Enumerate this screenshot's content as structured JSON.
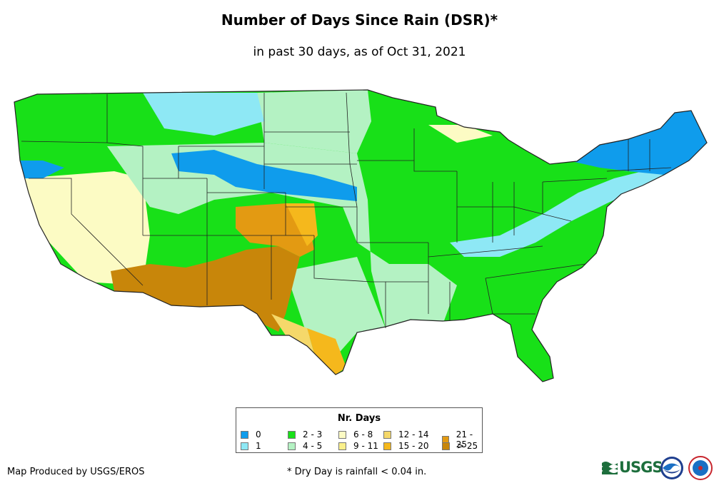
{
  "header": {
    "title": "Number of Days Since Rain (DSR)*",
    "subtitle": "in past 30 days, as of Oct 31, 2021"
  },
  "legend": {
    "title": "Nr. Days",
    "items": [
      {
        "label": "0",
        "color": "#0f9cec"
      },
      {
        "label": "1",
        "color": "#8ee8f5"
      },
      {
        "label": "2 - 3",
        "color": "#18e018"
      },
      {
        "label": "4 - 5",
        "color": "#b4f2c3"
      },
      {
        "label": "6 - 8",
        "color": "#fcfbc4"
      },
      {
        "label": "9 - 11",
        "color": "#faf08c"
      },
      {
        "label": "12 - 14",
        "color": "#f5d86a"
      },
      {
        "label": "15 - 20",
        "color": "#f5b81c"
      },
      {
        "label": "21 - 25",
        "color": "#e39a12"
      },
      {
        "label": "> 25",
        "color": "#c8860a"
      }
    ]
  },
  "footer": {
    "credit": "Map Produced by USGS/EROS",
    "note": "* Dry Day is rainfall < 0.04 in.",
    "usgs_logo_text": "USGS",
    "usgs_logo_icon": "usgs-wave-icon",
    "noaa_logo_icon": "noaa-logo-icon",
    "nws_logo_icon": "nws-logo-icon"
  }
}
